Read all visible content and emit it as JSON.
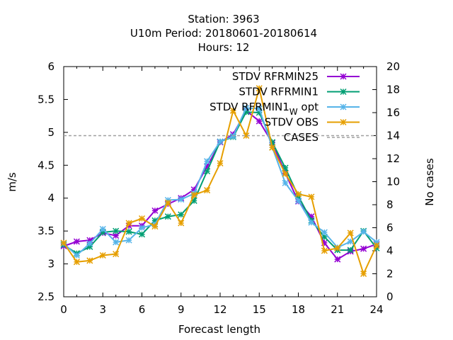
{
  "chart_data": {
    "type": "line",
    "title_lines": [
      "Station:      3963",
      "U10m   Period: 20180601-20180614",
      "Hours:  12"
    ],
    "xlabel": "Forecast length",
    "ylabel": "m/s",
    "y2label": "No cases",
    "xlim": [
      0,
      24
    ],
    "ylim": [
      2.5,
      6
    ],
    "y2lim": [
      0,
      20
    ],
    "xticks": [
      0,
      3,
      6,
      9,
      12,
      15,
      18,
      21,
      24
    ],
    "yticks": [
      2.5,
      3,
      3.5,
      4,
      4.5,
      5,
      5.5,
      6
    ],
    "y2ticks": [
      0,
      2,
      4,
      6,
      8,
      10,
      12,
      14,
      16,
      18,
      20
    ],
    "legend_position": "top-right",
    "x": [
      0,
      1,
      2,
      3,
      4,
      5,
      6,
      7,
      8,
      9,
      10,
      11,
      12,
      13,
      14,
      15,
      16,
      17,
      18,
      19,
      20,
      21,
      22,
      23,
      24
    ],
    "series": [
      {
        "name": "STDV RFRMIN25",
        "color": "#9400d3",
        "values": [
          3.27,
          3.34,
          3.36,
          3.47,
          3.43,
          3.58,
          3.58,
          3.81,
          3.91,
          4.0,
          4.13,
          4.48,
          4.85,
          4.97,
          5.33,
          5.17,
          4.84,
          4.38,
          3.95,
          3.72,
          3.32,
          3.07,
          3.19,
          3.23,
          3.3
        ]
      },
      {
        "name": "STDV RFRMIN1",
        "color": "#009e73",
        "values": [
          3.29,
          3.16,
          3.26,
          3.48,
          3.5,
          3.49,
          3.45,
          3.66,
          3.72,
          3.75,
          3.96,
          4.41,
          4.86,
          4.93,
          5.31,
          5.3,
          4.85,
          4.46,
          4.03,
          3.66,
          3.41,
          3.21,
          3.21,
          3.5,
          3.24
        ]
      },
      {
        "name": "STDV RFRMIN1_W opt",
        "label_main": "STDV RFRMIN1",
        "label_sub": "W",
        "label_tail": " opt",
        "color": "#56b4e9",
        "values": [
          3.31,
          3.13,
          3.31,
          3.53,
          3.33,
          3.36,
          3.55,
          3.6,
          3.97,
          3.98,
          4.07,
          4.56,
          4.86,
          4.94,
          5.37,
          5.36,
          4.77,
          4.23,
          3.96,
          3.63,
          3.48,
          3.25,
          3.34,
          3.49,
          3.33
        ]
      },
      {
        "name": "STDV OBS",
        "color": "#e69f00",
        "values": [
          3.32,
          3.03,
          3.05,
          3.13,
          3.15,
          3.62,
          3.69,
          3.57,
          3.93,
          3.62,
          4.05,
          4.12,
          4.53,
          5.33,
          4.95,
          5.67,
          4.77,
          4.37,
          4.06,
          4.02,
          3.2,
          3.24,
          3.47,
          2.85,
          3.28
        ]
      },
      {
        "name": "CASES",
        "color": "#a0a0a0",
        "axis": "y2",
        "dashed": true,
        "values": [
          14,
          14,
          14,
          14,
          14,
          14,
          14,
          14,
          14,
          14,
          14,
          14,
          14,
          14,
          14,
          14,
          14,
          14,
          14,
          14,
          14,
          14,
          14,
          14,
          14
        ]
      }
    ]
  }
}
